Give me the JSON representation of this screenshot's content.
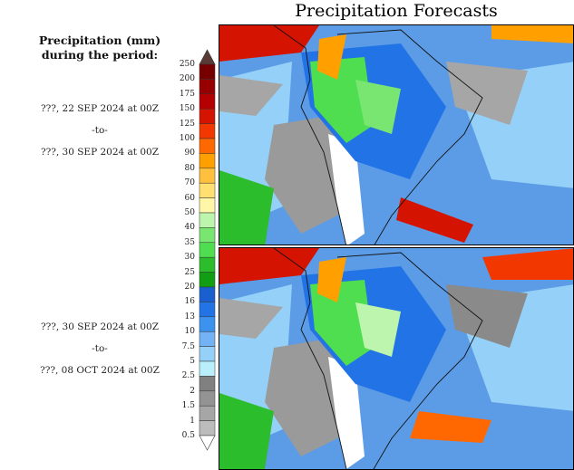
{
  "title": "Precipitation Forecasts",
  "legend": {
    "heading_line1": "Precipitation (mm)",
    "heading_line2": "during the period:",
    "labels": [
      "250",
      "200",
      "175",
      "150",
      "125",
      "100",
      "90",
      "80",
      "70",
      "60",
      "50",
      "40",
      "35",
      "30",
      "25",
      "20",
      "16",
      "13",
      "10",
      "7.5",
      "5",
      "2.5",
      "2",
      "1.5",
      "1",
      "0.5"
    ],
    "colors": [
      "#760000",
      "#960000",
      "#b40000",
      "#d41400",
      "#f23800",
      "#ff6800",
      "#ffa000",
      "#ffc040",
      "#ffe070",
      "#fff6a8",
      "#bdf5ae",
      "#7ae672",
      "#4fde4f",
      "#2cbd2c",
      "#129e12",
      "#1a5fcf",
      "#2274e6",
      "#3b92ef",
      "#72b2f5",
      "#94d0f8",
      "#b9effa",
      "#808080",
      "#939393",
      "#a6a6a6",
      "#bcbcbc"
    ],
    "over_color": "#5a3a35",
    "under_color": "#ffffff"
  },
  "panels": [
    {
      "start": "???, 22 SEP 2024 at 00Z",
      "sep": "-to-",
      "end": "???, 30 SEP 2024 at 00Z"
    },
    {
      "start": "???, 30 SEP 2024 at 00Z",
      "sep": "-to-",
      "end": "???, 08 OCT 2024 at 00Z"
    }
  ]
}
